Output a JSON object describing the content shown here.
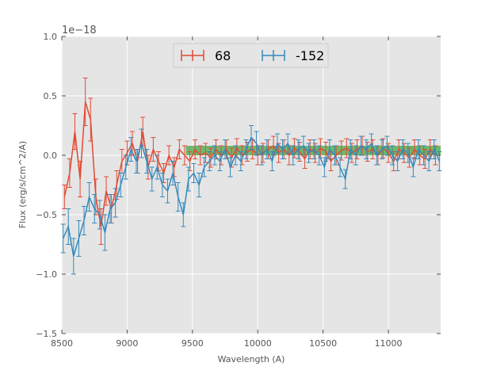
{
  "chart_data": {
    "type": "line",
    "title": "",
    "xlabel": "Wavelength (A)",
    "ylabel": "Flux (erg/s/cm^2/A)",
    "y_offset_label": "1e−18",
    "y_scale": 1e-18,
    "xlim": [
      8500,
      11400
    ],
    "ylim": [
      -1.5,
      1.0
    ],
    "xticks": [
      8500,
      9000,
      9500,
      10000,
      10500,
      11000
    ],
    "xtick_labels": [
      "8500",
      "9000",
      "9500",
      "10000",
      "10500",
      "11000"
    ],
    "yticks": [
      -1.5,
      -1.0,
      -0.5,
      0.0,
      0.5,
      1.0
    ],
    "ytick_labels": [
      "−1.5",
      "−1.0",
      "−0.5",
      "0.0",
      "0.5",
      "1.0"
    ],
    "grid": true,
    "legend_position": "top-center",
    "band": {
      "x_start": 9450,
      "x_end": 11400,
      "y_low": 0.0,
      "y_high": 0.08,
      "color": "#2ca02c"
    },
    "series": [
      {
        "name": "68",
        "color": "#E24A33",
        "x": [
          8520,
          8560,
          8600,
          8640,
          8680,
          8720,
          8760,
          8800,
          8840,
          8880,
          8920,
          8960,
          9000,
          9040,
          9080,
          9120,
          9160,
          9200,
          9240,
          9280,
          9320,
          9360,
          9400,
          9440,
          9480,
          9520,
          9560,
          9600,
          9640,
          9680,
          9720,
          9760,
          9800,
          9840,
          9880,
          9920,
          9960,
          10000,
          10040,
          10080,
          10120,
          10160,
          10200,
          10240,
          10280,
          10320,
          10360,
          10400,
          10440,
          10480,
          10520,
          10560,
          10600,
          10640,
          10680,
          10720,
          10760,
          10800,
          10840,
          10880,
          10920,
          10960,
          11000,
          11040,
          11080,
          11120,
          11160,
          11200,
          11240,
          11280,
          11320,
          11360
        ],
        "y": [
          -0.35,
          -0.15,
          0.2,
          -0.2,
          0.45,
          0.3,
          -0.35,
          -0.6,
          -0.3,
          -0.45,
          -0.25,
          -0.05,
          0.02,
          0.1,
          -0.05,
          0.2,
          -0.1,
          0.05,
          -0.05,
          -0.15,
          0.0,
          -0.1,
          0.05,
          0.0,
          -0.05,
          0.05,
          0.0,
          0.02,
          -0.02,
          0.05,
          0.0,
          0.05,
          -0.02,
          0.06,
          0.0,
          0.03,
          0.05,
          0.0,
          0.02,
          0.05,
          0.08,
          0.02,
          0.05,
          0.0,
          0.06,
          0.03,
          -0.03,
          0.05,
          0.02,
          0.06,
          0.03,
          -0.05,
          0.0,
          0.04,
          0.06,
          0.02,
          0.05,
          0.08,
          0.03,
          0.05,
          0.0,
          0.06,
          0.02,
          -0.05,
          0.05,
          0.02,
          -0.02,
          0.05,
          0.0,
          -0.03,
          0.05,
          0.0
        ],
        "err": [
          0.1,
          0.12,
          0.15,
          0.15,
          0.2,
          0.18,
          0.15,
          0.15,
          0.12,
          0.12,
          0.12,
          0.1,
          0.1,
          0.1,
          0.1,
          0.12,
          0.1,
          0.1,
          0.08,
          0.08,
          0.08,
          0.08,
          0.08,
          0.08,
          0.08,
          0.08,
          0.08,
          0.08,
          0.08,
          0.08,
          0.08,
          0.08,
          0.08,
          0.08,
          0.08,
          0.08,
          0.08,
          0.08,
          0.08,
          0.08,
          0.08,
          0.08,
          0.08,
          0.08,
          0.08,
          0.08,
          0.08,
          0.08,
          0.08,
          0.08,
          0.08,
          0.08,
          0.08,
          0.08,
          0.08,
          0.08,
          0.08,
          0.08,
          0.08,
          0.08,
          0.08,
          0.08,
          0.08,
          0.08,
          0.08,
          0.08,
          0.08,
          0.08,
          0.08,
          0.08,
          0.08,
          0.08
        ]
      },
      {
        "name": "-152",
        "color": "#348ABD",
        "x": [
          8510,
          8550,
          8590,
          8630,
          8670,
          8710,
          8750,
          8790,
          8830,
          8870,
          8910,
          8950,
          8990,
          9030,
          9070,
          9110,
          9150,
          9190,
          9230,
          9270,
          9310,
          9350,
          9390,
          9430,
          9470,
          9510,
          9550,
          9590,
          9630,
          9670,
          9710,
          9750,
          9790,
          9830,
          9870,
          9910,
          9950,
          9990,
          10030,
          10070,
          10110,
          10150,
          10190,
          10230,
          10270,
          10310,
          10350,
          10390,
          10430,
          10470,
          10510,
          10550,
          10590,
          10630,
          10670,
          10710,
          10750,
          10790,
          10830,
          10870,
          10910,
          10950,
          10990,
          11030,
          11070,
          11110,
          11150,
          11190,
          11230,
          11270,
          11310,
          11350,
          11390
        ],
        "y": [
          -0.7,
          -0.6,
          -0.85,
          -0.7,
          -0.55,
          -0.35,
          -0.45,
          -0.5,
          -0.65,
          -0.45,
          -0.4,
          -0.25,
          -0.1,
          0.05,
          -0.05,
          0.1,
          -0.05,
          -0.2,
          -0.1,
          -0.25,
          -0.3,
          -0.15,
          -0.35,
          -0.5,
          -0.2,
          -0.15,
          -0.25,
          -0.1,
          -0.05,
          0.0,
          -0.05,
          0.05,
          -0.1,
          0.0,
          -0.05,
          0.05,
          0.15,
          0.1,
          0.0,
          0.05,
          -0.05,
          0.1,
          0.05,
          0.1,
          0.0,
          0.05,
          0.08,
          0.02,
          0.05,
          0.0,
          -0.1,
          0.05,
          0.0,
          -0.1,
          -0.2,
          0.05,
          0.0,
          0.08,
          0.05,
          0.1,
          0.0,
          0.05,
          0.08,
          0.0,
          -0.05,
          0.05,
          0.02,
          -0.1,
          0.05,
          0.0,
          -0.05,
          0.05,
          -0.05
        ],
        "err": [
          0.12,
          0.15,
          0.15,
          0.15,
          0.12,
          0.12,
          0.12,
          0.12,
          0.15,
          0.12,
          0.12,
          0.1,
          0.1,
          0.1,
          0.1,
          0.12,
          0.1,
          0.1,
          0.1,
          0.1,
          0.1,
          0.1,
          0.12,
          0.1,
          0.1,
          0.08,
          0.1,
          0.08,
          0.08,
          0.08,
          0.08,
          0.08,
          0.08,
          0.08,
          0.08,
          0.08,
          0.1,
          0.1,
          0.08,
          0.08,
          0.08,
          0.08,
          0.08,
          0.08,
          0.08,
          0.08,
          0.08,
          0.08,
          0.08,
          0.08,
          0.08,
          0.08,
          0.08,
          0.08,
          0.08,
          0.08,
          0.08,
          0.08,
          0.08,
          0.08,
          0.08,
          0.08,
          0.08,
          0.08,
          0.08,
          0.08,
          0.08,
          0.08,
          0.08,
          0.08,
          0.08,
          0.08,
          0.08
        ]
      }
    ]
  }
}
